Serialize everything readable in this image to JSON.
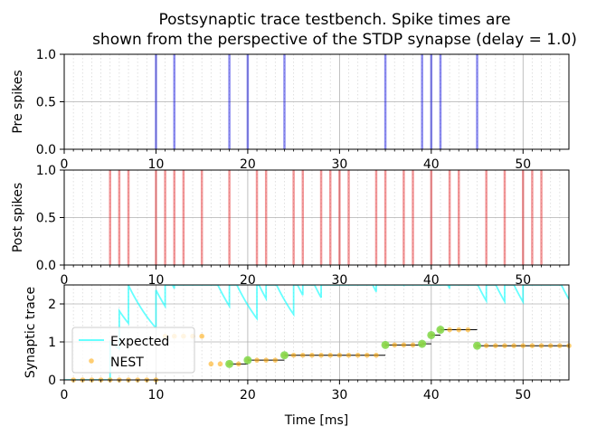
{
  "figure": {
    "title_line1": "Postsynaptic trace testbench. Spike times are",
    "title_line2": "shown from the perspective of the STDP synapse (delay = 1.0)"
  },
  "chart_data": [
    {
      "type": "line",
      "panel": "pre",
      "ylabel": "Pre spikes",
      "xlim": [
        0,
        55
      ],
      "ylim": [
        0,
        1
      ],
      "yticks": [
        "0.0",
        "0.5",
        "1.0"
      ],
      "xticks": [
        "0",
        "10",
        "20",
        "30",
        "40",
        "50"
      ],
      "grid": true,
      "spike_color": "#0000dd",
      "spike_times": [
        10,
        12,
        18,
        20,
        24,
        35,
        39,
        40,
        41,
        45
      ]
    },
    {
      "type": "line",
      "panel": "post",
      "ylabel": "Post spikes",
      "xlim": [
        0,
        55
      ],
      "ylim": [
        0,
        1
      ],
      "yticks": [
        "0.0",
        "0.5",
        "1.0"
      ],
      "xticks": [
        "0",
        "10",
        "20",
        "30",
        "40",
        "50"
      ],
      "grid": true,
      "spike_color": "#e41a1c",
      "spike_times": [
        5,
        6,
        7,
        10,
        11,
        12,
        13,
        15,
        18,
        21,
        22,
        25,
        26,
        28,
        29,
        30,
        31,
        34,
        35,
        37,
        38,
        40,
        42,
        43,
        46,
        48,
        50,
        51,
        52
      ]
    },
    {
      "type": "line",
      "panel": "trace",
      "ylabel": "Synaptic trace",
      "xlabel": "Time [ms]",
      "xlim": [
        0,
        55
      ],
      "ylim": [
        0,
        2.5
      ],
      "yticks": [
        "0",
        "1",
        "2"
      ],
      "xticks": [
        "0",
        "10",
        "20",
        "30",
        "40",
        "50"
      ],
      "grid": true,
      "legend": "lower-left",
      "series": [
        {
          "name": "Expected",
          "color": "#00ffff",
          "trace_tau": 5.0
        },
        {
          "name": "NEST",
          "color": "#ffa500",
          "marker": "dot",
          "x": [
            1,
            2,
            3,
            4,
            5,
            6,
            7,
            8,
            9,
            10,
            11,
            12,
            13,
            14,
            15,
            16,
            17,
            18,
            19,
            20,
            21,
            22,
            23,
            24,
            25,
            26,
            27,
            28,
            29,
            30,
            31,
            32,
            33,
            34,
            35,
            36,
            37,
            38,
            39,
            40,
            41,
            42,
            43,
            44,
            45,
            46,
            47,
            48,
            49,
            50,
            51,
            52,
            53,
            54,
            55
          ],
          "y": [
            0,
            0,
            0,
            0,
            0,
            0,
            0,
            0,
            0,
            0,
            1.15,
            1.15,
            1.15,
            1.15,
            1.15,
            0.42,
            0.42,
            0.42,
            0.42,
            0.52,
            0.52,
            0.52,
            0.52,
            0.65,
            0.65,
            0.65,
            0.65,
            0.65,
            0.65,
            0.65,
            0.65,
            0.65,
            0.65,
            0.65,
            0.92,
            0.92,
            0.92,
            0.92,
            0.95,
            1.18,
            1.32,
            1.32,
            1.32,
            1.32,
            0.9,
            0.9,
            0.9,
            0.9,
            0.9,
            0.9,
            0.9,
            0.9,
            0.9,
            0.9,
            0.9
          ]
        }
      ],
      "pre_spike_trace_values": [
        {
          "t": 18,
          "v": 0.42
        },
        {
          "t": 20,
          "v": 0.52
        },
        {
          "t": 24,
          "v": 0.65
        },
        {
          "t": 35,
          "v": 0.92
        },
        {
          "t": 39,
          "v": 0.95
        },
        {
          "t": 40,
          "v": 1.18
        },
        {
          "t": 41,
          "v": 1.32
        },
        {
          "t": 45,
          "v": 0.9
        }
      ]
    }
  ]
}
